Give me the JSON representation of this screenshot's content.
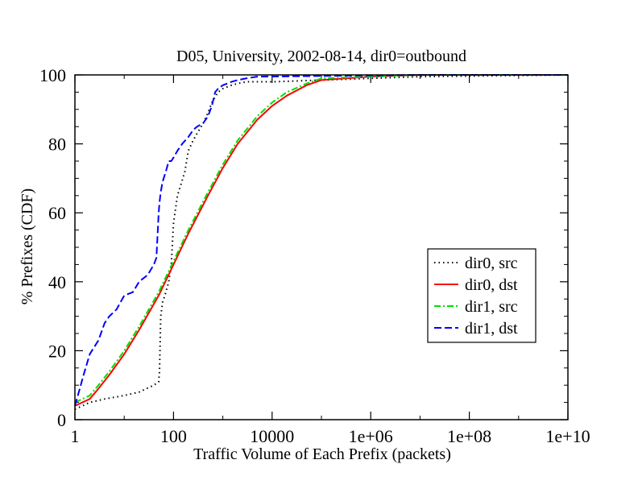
{
  "chart_data": {
    "type": "line",
    "title": "D05, University, 2002-08-14, dir0=outbound",
    "xlabel": "Traffic Volume of Each Prefix (packets)",
    "ylabel": "% Prefixes (CDF)",
    "xscale": "log",
    "xlim": [
      1,
      10000000000
    ],
    "ylim": [
      0,
      100
    ],
    "x_ticks": [
      {
        "value": 1,
        "label": "1"
      },
      {
        "value": 100,
        "label": "100"
      },
      {
        "value": 10000,
        "label": "10000"
      },
      {
        "value": 1000000,
        "label": "1e+06"
      },
      {
        "value": 100000000,
        "label": "1e+08"
      },
      {
        "value": 10000000000,
        "label": "1e+10"
      }
    ],
    "y_ticks": [
      {
        "value": 0,
        "label": "0"
      },
      {
        "value": 20,
        "label": "20"
      },
      {
        "value": 40,
        "label": "40"
      },
      {
        "value": 60,
        "label": "60"
      },
      {
        "value": 80,
        "label": "80"
      },
      {
        "value": 100,
        "label": "100"
      }
    ],
    "grid": false,
    "legend_position": "right",
    "series": [
      {
        "name": "dir0, src",
        "color": "#000000",
        "style": "dotted",
        "x": [
          1,
          2,
          4,
          10,
          20,
          40,
          50,
          52,
          55,
          60,
          70,
          80,
          90,
          100,
          120,
          140,
          170,
          200,
          250,
          300,
          400,
          500,
          600,
          800,
          1000,
          1500,
          2000,
          3000,
          5000,
          10000,
          100000,
          10000000,
          10000000000
        ],
        "y": [
          3,
          5,
          6,
          7,
          8,
          10,
          11,
          14,
          30,
          34,
          37,
          40,
          45,
          57,
          65,
          68,
          72,
          78,
          81,
          83,
          86,
          89,
          92,
          95,
          96,
          97,
          97.5,
          98,
          98,
          98,
          98.5,
          99.5,
          100
        ]
      },
      {
        "name": "dir0, dst",
        "color": "#ff0000",
        "style": "solid",
        "x": [
          1,
          2,
          3,
          5,
          10,
          20,
          50,
          100,
          200,
          500,
          1000,
          2000,
          5000,
          10000,
          20000,
          50000,
          100000,
          1000000,
          10000000,
          100000000,
          10000000000
        ],
        "y": [
          4,
          6,
          9,
          13,
          19,
          26,
          36,
          45,
          54,
          65,
          73,
          80,
          87,
          91,
          94,
          97,
          98.5,
          99.5,
          100,
          100,
          100
        ]
      },
      {
        "name": "dir1, src",
        "color": "#00e000",
        "style": "dashdot",
        "x": [
          1,
          2,
          3,
          5,
          10,
          20,
          50,
          100,
          200,
          500,
          1000,
          2000,
          5000,
          10000,
          20000,
          50000,
          100000,
          1000000,
          10000000,
          100000000,
          10000000000
        ],
        "y": [
          5,
          7,
          10,
          14,
          20,
          27,
          37,
          46,
          55,
          66,
          74,
          81,
          88,
          92,
          95,
          97.5,
          99,
          99.5,
          100,
          100,
          100
        ]
      },
      {
        "name": "dir1, dst",
        "color": "#0000ff",
        "style": "dashed",
        "x": [
          1,
          1.2,
          1.5,
          2,
          3,
          4,
          5,
          7,
          10,
          15,
          20,
          30,
          40,
          45,
          50,
          52,
          55,
          60,
          70,
          80,
          90,
          100,
          120,
          150,
          200,
          250,
          300,
          400,
          500,
          600,
          700,
          800,
          1000,
          1500,
          2000,
          3000,
          5000,
          10000000,
          10000000000
        ],
        "y": [
          4,
          8,
          13,
          19,
          23,
          28,
          30,
          32,
          36,
          37,
          40,
          42,
          45,
          47,
          60,
          63,
          66,
          69,
          72,
          75,
          75,
          76,
          78,
          80,
          82,
          84,
          85,
          86,
          88,
          91,
          95,
          96,
          97,
          98,
          98.5,
          99,
          99.5,
          100,
          100
        ]
      }
    ]
  }
}
